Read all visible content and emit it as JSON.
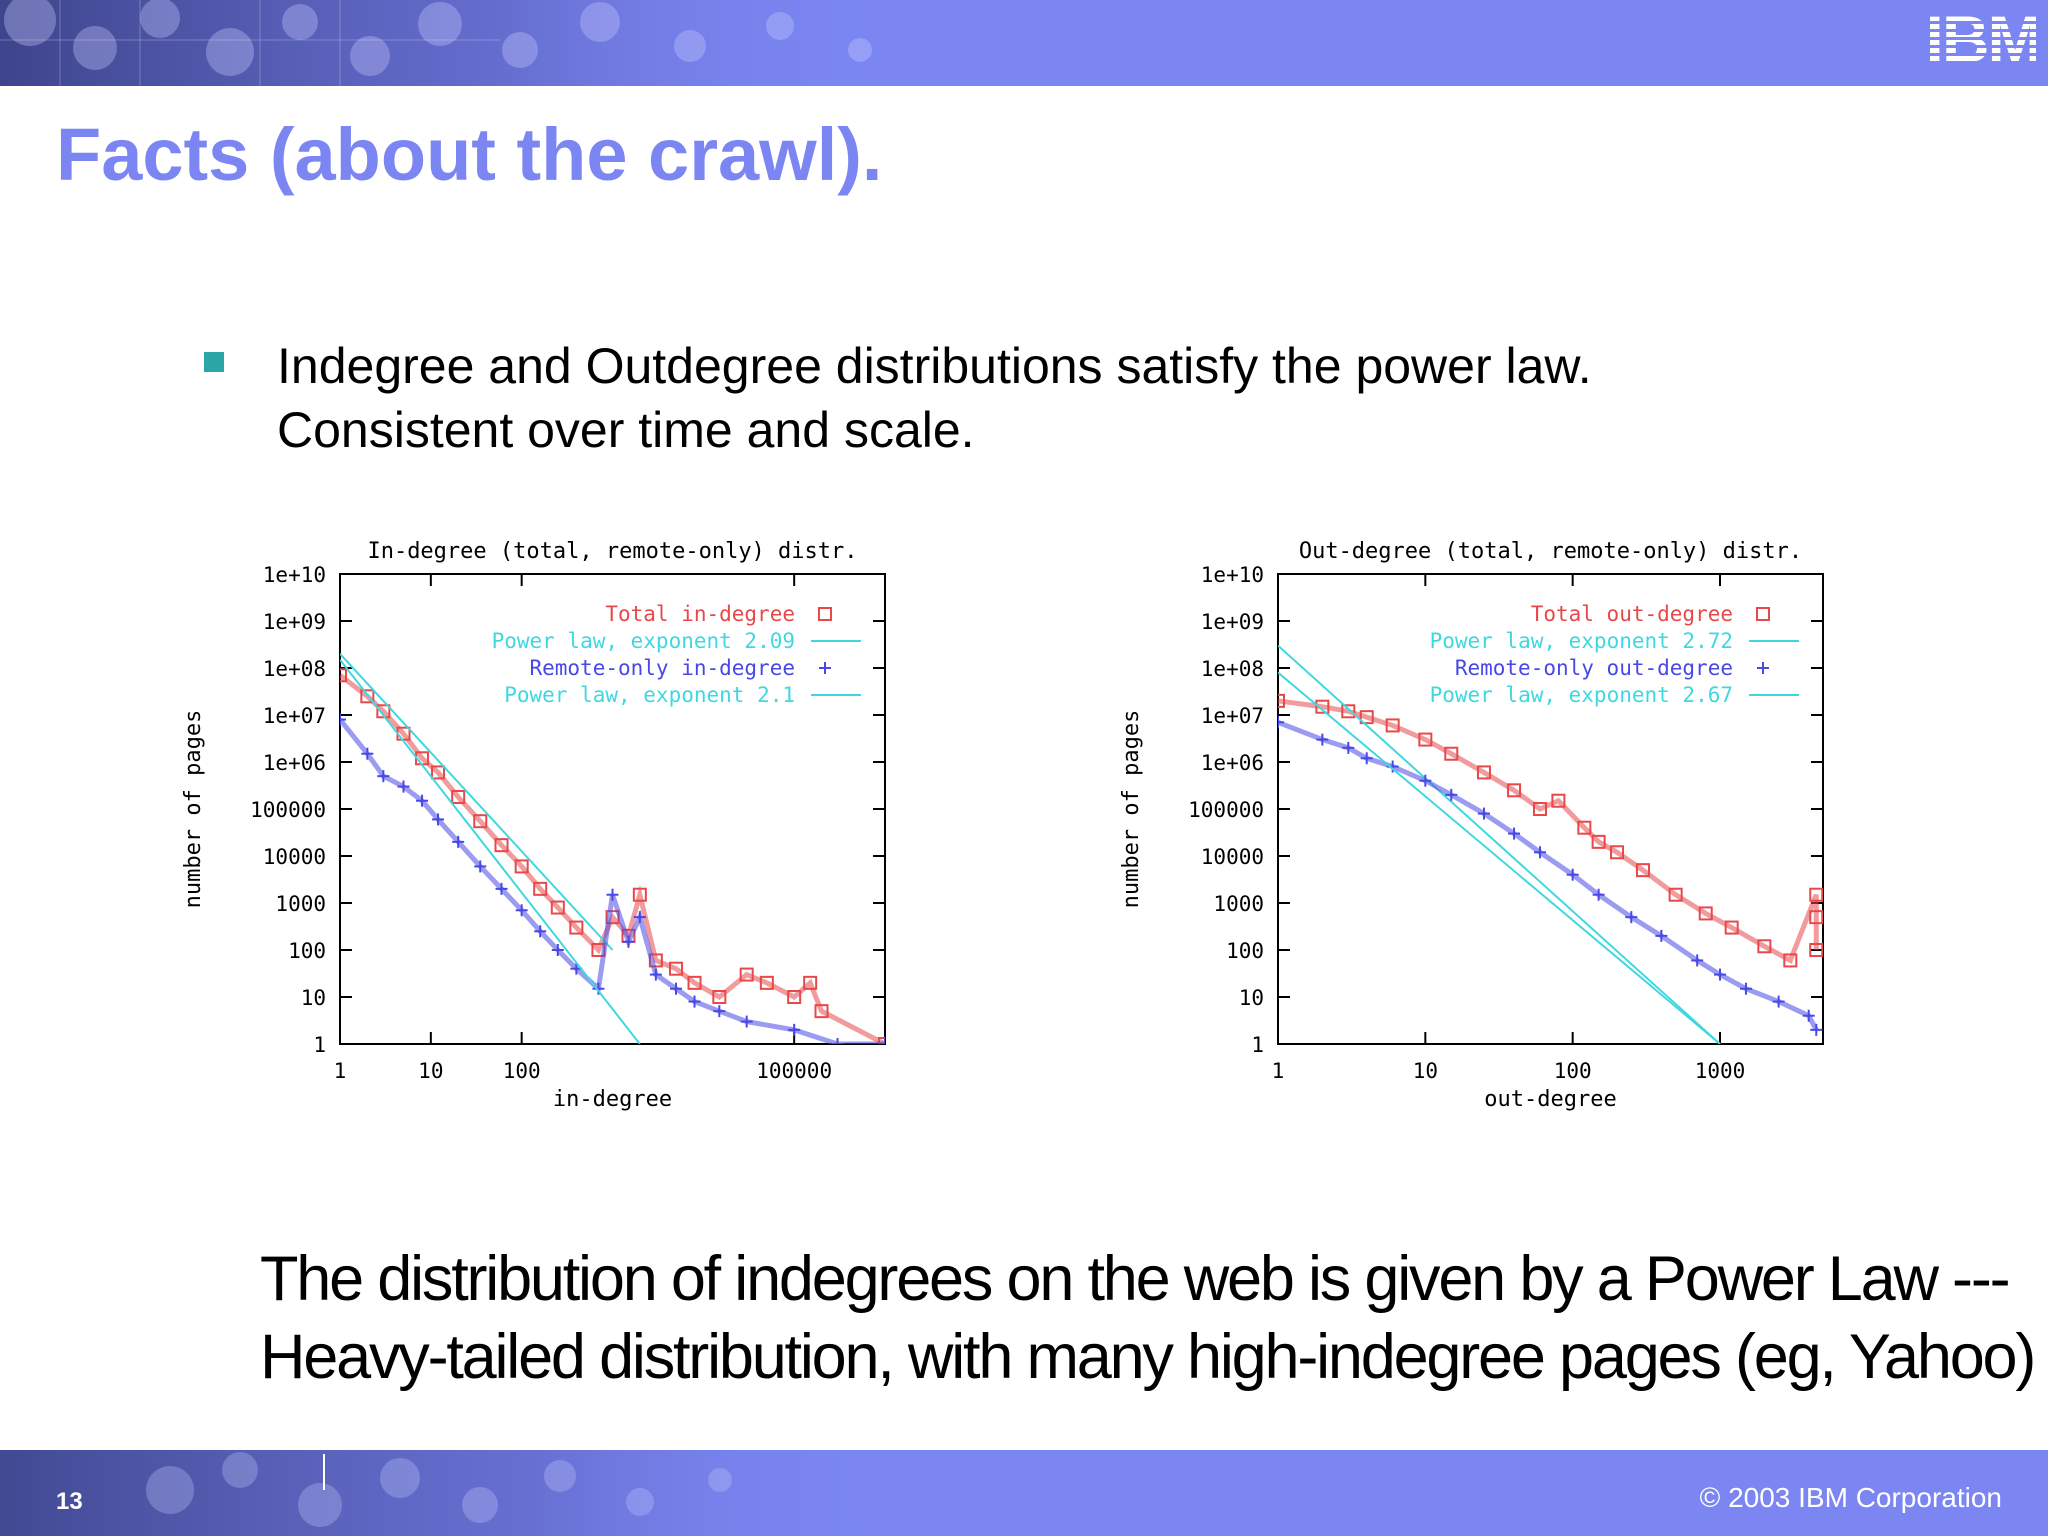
{
  "header": {
    "logo_text": "IBM",
    "title": "Facts (about the crawl).",
    "brand_color": "#7b86f2"
  },
  "bullet": {
    "line1": "Indegree and Outdegree distributions satisfy the power law.",
    "line2": "Consistent over time and scale.",
    "marker_color": "#2aa6a6"
  },
  "summary": {
    "line1": "The distribution of indegrees on the web is given by a Power Law ---",
    "line2": "Heavy-tailed distribution, with many high-indegree pages (eg, Yahoo)"
  },
  "footer": {
    "slide_number": "13",
    "copyright": "© 2003 IBM Corporation"
  },
  "chart_data": [
    {
      "type": "scatter",
      "title": "In-degree (total, remote-only) distr.",
      "xlabel": "in-degree",
      "ylabel": "number of pages",
      "x_scale": "log",
      "y_scale": "log",
      "xlim": [
        1,
        1000000
      ],
      "ylim": [
        1,
        10000000000
      ],
      "x_ticks": [
        {
          "v": 1,
          "label": "1"
        },
        {
          "v": 10,
          "label": "10"
        },
        {
          "v": 100,
          "label": "100"
        },
        {
          "v": 100000,
          "label": "100000"
        }
      ],
      "y_ticks": [
        {
          "v": 1,
          "label": "1"
        },
        {
          "v": 10,
          "label": "10"
        },
        {
          "v": 100,
          "label": "100"
        },
        {
          "v": 1000,
          "label": "1000"
        },
        {
          "v": 10000,
          "label": "10000"
        },
        {
          "v": 100000,
          "label": "100000"
        },
        {
          "v": 1000000,
          "label": "1e+06"
        },
        {
          "v": 10000000,
          "label": "1e+07"
        },
        {
          "v": 100000000,
          "label": "1e+08"
        },
        {
          "v": 1000000000,
          "label": "1e+09"
        },
        {
          "v": 10000000000,
          "label": "1e+10"
        }
      ],
      "legend_position": "top-right",
      "series": [
        {
          "name": "Total in-degree",
          "style": "square",
          "color": "#e8484a",
          "points": [
            [
              1,
              70000000
            ],
            [
              2,
              25000000
            ],
            [
              3,
              12000000
            ],
            [
              5,
              4000000
            ],
            [
              8,
              1200000
            ],
            [
              12,
              600000
            ],
            [
              20,
              180000
            ],
            [
              35,
              55000
            ],
            [
              60,
              17000
            ],
            [
              100,
              6000
            ],
            [
              160,
              2000
            ],
            [
              250,
              800
            ],
            [
              400,
              300
            ],
            [
              700,
              100
            ],
            [
              1000,
              500
            ],
            [
              1500,
              200
            ],
            [
              2000,
              1500
            ],
            [
              3000,
              60
            ],
            [
              5000,
              40
            ],
            [
              8000,
              20
            ],
            [
              15000,
              10
            ],
            [
              30000,
              30
            ],
            [
              50000,
              20
            ],
            [
              100000,
              10
            ],
            [
              150000,
              20
            ],
            [
              200000,
              5
            ],
            [
              1000000,
              1
            ]
          ]
        },
        {
          "name": "Power law, exponent 2.09",
          "style": "line",
          "color": "#40d8e0",
          "points": [
            [
              1,
              200000000
            ],
            [
              1000,
              100
            ]
          ]
        },
        {
          "name": "Remote-only in-degree",
          "style": "plus",
          "color": "#4848e8",
          "points": [
            [
              1,
              8000000
            ],
            [
              2,
              1500000
            ],
            [
              3,
              500000
            ],
            [
              5,
              300000
            ],
            [
              8,
              150000
            ],
            [
              12,
              60000
            ],
            [
              20,
              20000
            ],
            [
              35,
              6000
            ],
            [
              60,
              2000
            ],
            [
              100,
              700
            ],
            [
              160,
              250
            ],
            [
              250,
              100
            ],
            [
              400,
              40
            ],
            [
              700,
              15
            ],
            [
              1000,
              1500
            ],
            [
              1500,
              150
            ],
            [
              2000,
              500
            ],
            [
              3000,
              30
            ],
            [
              5000,
              15
            ],
            [
              8000,
              8
            ],
            [
              15000,
              5
            ],
            [
              30000,
              3
            ],
            [
              100000,
              2
            ],
            [
              300000,
              1
            ],
            [
              1000000,
              1
            ]
          ]
        },
        {
          "name": "Power law, exponent 2.1",
          "style": "line",
          "color": "#40d8e0",
          "points": [
            [
              1,
              150000000
            ],
            [
              2000,
              1
            ]
          ]
        }
      ]
    },
    {
      "type": "scatter",
      "title": "Out-degree (total, remote-only) distr.",
      "xlabel": "out-degree",
      "ylabel": "number of pages",
      "x_scale": "log",
      "y_scale": "log",
      "xlim": [
        1,
        5000
      ],
      "ylim": [
        1,
        10000000000
      ],
      "x_ticks": [
        {
          "v": 1,
          "label": "1"
        },
        {
          "v": 10,
          "label": "10"
        },
        {
          "v": 100,
          "label": "100"
        },
        {
          "v": 1000,
          "label": "1000"
        }
      ],
      "y_ticks": [
        {
          "v": 1,
          "label": "1"
        },
        {
          "v": 10,
          "label": "10"
        },
        {
          "v": 100,
          "label": "100"
        },
        {
          "v": 1000,
          "label": "1000"
        },
        {
          "v": 10000,
          "label": "10000"
        },
        {
          "v": 100000,
          "label": "100000"
        },
        {
          "v": 1000000,
          "label": "1e+06"
        },
        {
          "v": 10000000,
          "label": "1e+07"
        },
        {
          "v": 100000000,
          "label": "1e+08"
        },
        {
          "v": 1000000000,
          "label": "1e+09"
        },
        {
          "v": 10000000000,
          "label": "1e+10"
        }
      ],
      "legend_position": "top-right",
      "series": [
        {
          "name": "Total out-degree",
          "style": "square",
          "color": "#e8484a",
          "points": [
            [
              1,
              20000000
            ],
            [
              2,
              15000000
            ],
            [
              3,
              12000000
            ],
            [
              4,
              9000000
            ],
            [
              6,
              6000000
            ],
            [
              10,
              3000000
            ],
            [
              15,
              1500000
            ],
            [
              25,
              600000
            ],
            [
              40,
              250000
            ],
            [
              60,
              100000
            ],
            [
              80,
              150000
            ],
            [
              120,
              40000
            ],
            [
              150,
              20000
            ],
            [
              200,
              12000
            ],
            [
              300,
              5000
            ],
            [
              500,
              1500
            ],
            [
              800,
              600
            ],
            [
              1200,
              300
            ],
            [
              2000,
              120
            ],
            [
              3000,
              60
            ],
            [
              4500,
              1500
            ],
            [
              4500,
              500
            ],
            [
              4500,
              100
            ]
          ]
        },
        {
          "name": "Power law, exponent 2.72",
          "style": "line",
          "color": "#40d8e0",
          "points": [
            [
              1,
              300000000
            ],
            [
              1000,
              1
            ]
          ]
        },
        {
          "name": "Remote-only out-degree",
          "style": "plus",
          "color": "#4848e8",
          "points": [
            [
              1,
              7000000
            ],
            [
              2,
              3000000
            ],
            [
              3,
              2000000
            ],
            [
              4,
              1200000
            ],
            [
              6,
              800000
            ],
            [
              10,
              400000
            ],
            [
              15,
              200000
            ],
            [
              25,
              80000
            ],
            [
              40,
              30000
            ],
            [
              60,
              12000
            ],
            [
              100,
              4000
            ],
            [
              150,
              1500
            ],
            [
              250,
              500
            ],
            [
              400,
              200
            ],
            [
              700,
              60
            ],
            [
              1000,
              30
            ],
            [
              1500,
              15
            ],
            [
              2500,
              8
            ],
            [
              4000,
              4
            ],
            [
              4500,
              2
            ]
          ]
        },
        {
          "name": "Power law, exponent 2.67",
          "style": "line",
          "color": "#40d8e0",
          "points": [
            [
              1,
              80000000
            ],
            [
              1000,
              1
            ]
          ]
        }
      ]
    }
  ]
}
